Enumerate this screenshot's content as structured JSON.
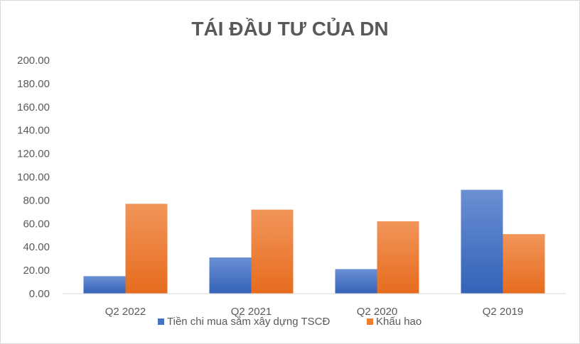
{
  "chart_data": {
    "type": "bar",
    "title": "TÁI ĐẦU TƯ CỦA DN",
    "categories": [
      "Q2 2022",
      "Q2 2021",
      "Q2 2020",
      "Q2 2019"
    ],
    "series": [
      {
        "name": "Tiền chi mua sắm xây dựng TSCĐ",
        "values": [
          15,
          31,
          21,
          89
        ],
        "color": "#4472c4"
      },
      {
        "name": "Khấu hao",
        "values": [
          77,
          72,
          62,
          51
        ],
        "color": "#ed7d31"
      }
    ],
    "ylim": [
      0,
      200
    ],
    "yticks": [
      "0.00",
      "20.00",
      "40.00",
      "60.00",
      "80.00",
      "100.00",
      "120.00",
      "140.00",
      "160.00",
      "180.00",
      "200.00"
    ],
    "xlabel": "",
    "ylabel": "",
    "grid": false,
    "legend": "bottom"
  }
}
